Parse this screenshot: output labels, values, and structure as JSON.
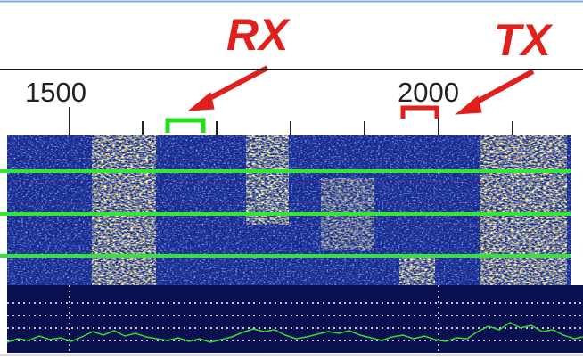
{
  "annotations": {
    "rx": "RX",
    "tx": "TX"
  },
  "scale": {
    "labels": [
      "1500",
      "2000"
    ]
  }
}
